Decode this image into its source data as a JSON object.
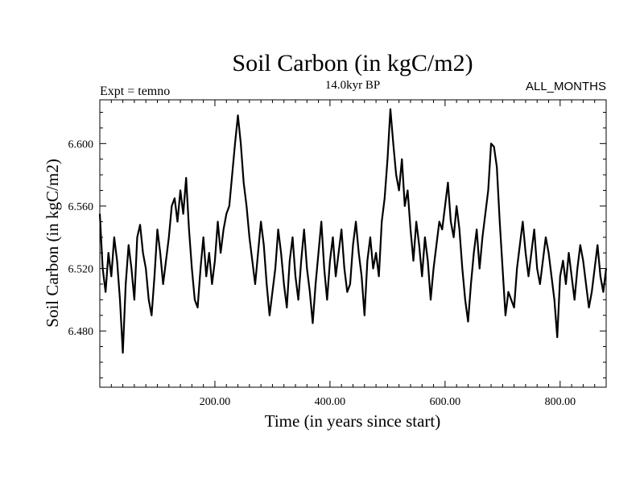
{
  "chart_data": {
    "type": "line",
    "title": "Soil Carbon (in kgC/m2)",
    "subtitle": "14.0kyr BP",
    "left_label": "Expt = temno",
    "right_label": "ALL_MONTHS",
    "xlabel": "Time (in years since start)",
    "ylabel": "Soil Carbon (in kgC/m2)",
    "xlim": [
      0,
      880
    ],
    "ylim": [
      6.444,
      6.628
    ],
    "x_ticks": [
      200,
      400,
      600,
      800
    ],
    "x_tick_labels": [
      "200.00",
      "400.00",
      "600.00",
      "800.00"
    ],
    "y_ticks": [
      6.48,
      6.52,
      6.56,
      6.6
    ],
    "y_tick_labels": [
      "6.480",
      "6.520",
      "6.560",
      "6.600"
    ],
    "series": [
      {
        "name": "Soil Carbon",
        "color": "#000000",
        "x": [
          0,
          5,
          10,
          15,
          20,
          25,
          30,
          35,
          40,
          45,
          50,
          55,
          60,
          65,
          70,
          75,
          80,
          85,
          90,
          95,
          100,
          105,
          110,
          115,
          120,
          125,
          130,
          135,
          140,
          145,
          150,
          155,
          160,
          165,
          170,
          175,
          180,
          185,
          190,
          195,
          200,
          205,
          210,
          215,
          220,
          225,
          230,
          235,
          240,
          245,
          250,
          255,
          260,
          265,
          270,
          275,
          280,
          285,
          290,
          295,
          300,
          305,
          310,
          315,
          320,
          325,
          330,
          335,
          340,
          345,
          350,
          355,
          360,
          365,
          370,
          375,
          380,
          385,
          390,
          395,
          400,
          405,
          410,
          415,
          420,
          425,
          430,
          435,
          440,
          445,
          450,
          455,
          460,
          465,
          470,
          475,
          480,
          485,
          490,
          495,
          500,
          505,
          510,
          515,
          520,
          525,
          530,
          535,
          540,
          545,
          550,
          555,
          560,
          565,
          570,
          575,
          580,
          585,
          590,
          595,
          600,
          605,
          610,
          615,
          620,
          625,
          630,
          635,
          640,
          645,
          650,
          655,
          660,
          665,
          670,
          675,
          680,
          685,
          690,
          695,
          700,
          705,
          710,
          715,
          720,
          725,
          730,
          735,
          740,
          745,
          750,
          755,
          760,
          765,
          770,
          775,
          780,
          785,
          790,
          795,
          800,
          805,
          810,
          815,
          820,
          825,
          830,
          835,
          840,
          845,
          850,
          855,
          860,
          865,
          870,
          875,
          880
        ],
        "values": [
          6.555,
          6.52,
          6.505,
          6.53,
          6.515,
          6.54,
          6.525,
          6.5,
          6.466,
          6.51,
          6.535,
          6.52,
          6.5,
          6.54,
          6.548,
          6.53,
          6.52,
          6.5,
          6.49,
          6.515,
          6.545,
          6.53,
          6.51,
          6.525,
          6.54,
          6.56,
          6.565,
          6.55,
          6.57,
          6.555,
          6.578,
          6.545,
          6.52,
          6.5,
          6.495,
          6.52,
          6.54,
          6.515,
          6.53,
          6.51,
          6.525,
          6.55,
          6.53,
          6.545,
          6.555,
          6.56,
          6.58,
          6.6,
          6.618,
          6.6,
          6.575,
          6.56,
          6.54,
          6.525,
          6.51,
          6.53,
          6.55,
          6.535,
          6.51,
          6.49,
          6.505,
          6.52,
          6.545,
          6.53,
          6.51,
          6.495,
          6.525,
          6.54,
          6.515,
          6.5,
          6.525,
          6.545,
          6.52,
          6.505,
          6.485,
          6.51,
          6.53,
          6.55,
          6.52,
          6.5,
          6.525,
          6.54,
          6.515,
          6.53,
          6.545,
          6.52,
          6.505,
          6.51,
          6.535,
          6.55,
          6.53,
          6.515,
          6.49,
          6.525,
          6.54,
          6.52,
          6.53,
          6.515,
          6.55,
          6.565,
          6.59,
          6.622,
          6.6,
          6.58,
          6.57,
          6.59,
          6.56,
          6.57,
          6.545,
          6.525,
          6.55,
          6.535,
          6.515,
          6.54,
          6.525,
          6.5,
          6.52,
          6.535,
          6.55,
          6.545,
          6.56,
          6.575,
          6.55,
          6.54,
          6.56,
          6.545,
          6.52,
          6.5,
          6.486,
          6.51,
          6.53,
          6.545,
          6.52,
          6.54,
          6.555,
          6.57,
          6.6,
          6.598,
          6.585,
          6.55,
          6.52,
          6.49,
          6.505,
          6.5,
          6.495,
          6.52,
          6.535,
          6.55,
          6.53,
          6.515,
          6.53,
          6.545,
          6.52,
          6.51,
          6.525,
          6.54,
          6.53,
          6.515,
          6.5,
          6.476,
          6.515,
          6.525,
          6.51,
          6.53,
          6.515,
          6.5,
          6.52,
          6.535,
          6.525,
          6.51,
          6.495,
          6.505,
          6.52,
          6.535,
          6.515,
          6.505,
          6.52
        ]
      }
    ]
  }
}
